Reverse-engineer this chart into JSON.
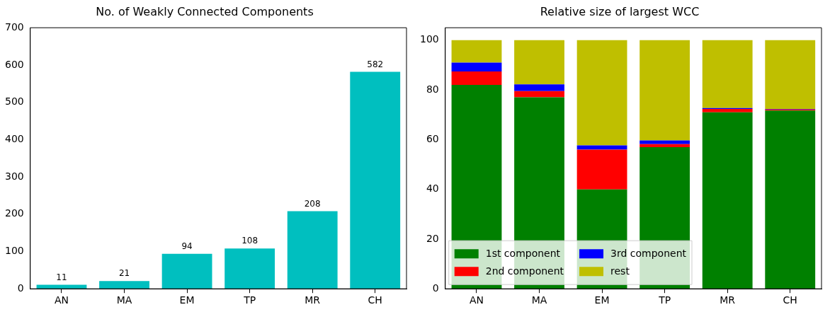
{
  "chart_data": [
    {
      "type": "bar",
      "title": "No. of Weakly Connected Components",
      "categories": [
        "AN",
        "MA",
        "EM",
        "TP",
        "MR",
        "CH"
      ],
      "values": [
        11,
        21,
        94,
        108,
        208,
        582
      ],
      "color": "#00bfbf",
      "ylim": [
        0,
        700
      ],
      "yticks": [
        0,
        100,
        200,
        300,
        400,
        500,
        600,
        700
      ],
      "data_labels": true,
      "grid": false,
      "legend": false
    },
    {
      "type": "bar",
      "title": "Relative size of largest WCC",
      "categories": [
        "AN",
        "MA",
        "EM",
        "TP",
        "MR",
        "CH"
      ],
      "stacked": true,
      "ylim": [
        0,
        105
      ],
      "yticks": [
        0,
        20,
        40,
        60,
        80,
        100
      ],
      "grid": false,
      "legend": "bottom left",
      "series": [
        {
          "name": "1st component",
          "color": "#008000",
          "values": [
            82,
            77,
            40,
            57,
            71,
            71.7
          ]
        },
        {
          "name": "2nd component",
          "color": "#ff0000",
          "values": [
            5.4,
            2.5,
            16,
            1.2,
            1.3,
            0.4
          ]
        },
        {
          "name": "3rd component",
          "color": "#0000ff",
          "values": [
            3.6,
            2.7,
            1.7,
            1.5,
            0.4,
            0.2
          ]
        },
        {
          "name": "rest",
          "color": "#bfbf00",
          "values": [
            9,
            17.8,
            42.3,
            40.3,
            27.3,
            27.7
          ]
        }
      ]
    }
  ]
}
